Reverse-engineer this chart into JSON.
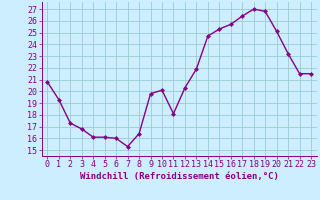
{
  "x": [
    0,
    1,
    2,
    3,
    4,
    5,
    6,
    7,
    8,
    9,
    10,
    11,
    12,
    13,
    14,
    15,
    16,
    17,
    18,
    19,
    20,
    21,
    22,
    23
  ],
  "y": [
    20.8,
    19.3,
    17.3,
    16.8,
    16.1,
    16.1,
    16.0,
    15.3,
    16.4,
    19.8,
    20.1,
    18.1,
    20.3,
    21.9,
    24.7,
    25.3,
    25.7,
    26.4,
    27.0,
    26.8,
    25.1,
    23.2,
    21.5,
    21.5
  ],
  "line_color": "#880088",
  "marker": "D",
  "marker_size": 2.0,
  "bg_color": "#cceeff",
  "grid_color": "#99cccc",
  "xlabel": "Windchill (Refroidissement éolien,°C)",
  "ylabel_ticks": [
    15,
    16,
    17,
    18,
    19,
    20,
    21,
    22,
    23,
    24,
    25,
    26,
    27
  ],
  "xtick_labels": [
    "0",
    "1",
    "2",
    "3",
    "4",
    "5",
    "6",
    "7",
    "8",
    "9",
    "10",
    "11",
    "12",
    "13",
    "14",
    "15",
    "16",
    "17",
    "18",
    "19",
    "20",
    "21",
    "22",
    "23"
  ],
  "ylim": [
    14.5,
    27.6
  ],
  "xlim": [
    -0.5,
    23.5
  ],
  "xlabel_fontsize": 6.5,
  "tick_fontsize": 6.0,
  "line_width": 1.0
}
